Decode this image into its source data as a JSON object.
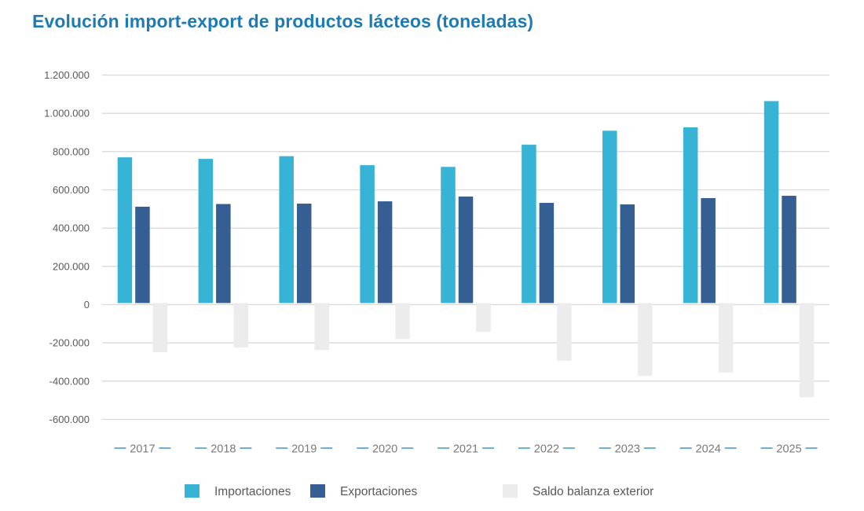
{
  "chart_data": {
    "type": "bar",
    "title": "Evolución import-export de productos lácteos (toneladas)",
    "xlabel": "",
    "ylabel": "",
    "categories": [
      "2017",
      "2018",
      "2019",
      "2020",
      "2021",
      "2022",
      "2023",
      "2024",
      "2025"
    ],
    "series": [
      {
        "name": "Importaciones",
        "color": "#37b3d6",
        "values": [
          770000,
          762000,
          776000,
          729000,
          720000,
          836000,
          909000,
          927000,
          1064000
        ]
      },
      {
        "name": "Exportaciones",
        "color": "#355e93",
        "values": [
          512000,
          526000,
          528000,
          540000,
          565000,
          532000,
          524000,
          557000,
          569000
        ]
      },
      {
        "name": "Saldo balanza exterior",
        "color": "#ececec",
        "values": [
          -249000,
          -224000,
          -237000,
          -180000,
          -143000,
          -293000,
          -373000,
          -355000,
          -485000
        ]
      }
    ],
    "ylim": [
      -600000,
      1200000
    ],
    "yticks": [
      1200000,
      1000000,
      800000,
      600000,
      400000,
      200000,
      0,
      -200000,
      -400000,
      -600000
    ],
    "ytick_labels": [
      "1.200.000",
      "1.000.000",
      "800.000",
      "600.000",
      "400.000",
      "200.000",
      "0",
      "-200.000",
      "-400.000",
      "-600.000"
    ],
    "grid": true,
    "legend_position": "bottom-center",
    "colors": {
      "title": "#1b7bb6",
      "grid": "#d9d9d9",
      "axis_dash": "#5ea8d8"
    }
  }
}
